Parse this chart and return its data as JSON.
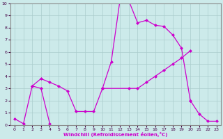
{
  "xlabel": "Windchill (Refroidissement éolien,°C)",
  "xlim": [
    -0.5,
    23.5
  ],
  "ylim": [
    0,
    10
  ],
  "xticks": [
    0,
    1,
    2,
    3,
    4,
    5,
    6,
    7,
    8,
    9,
    10,
    11,
    12,
    13,
    14,
    15,
    16,
    17,
    18,
    19,
    20,
    21,
    22,
    23
  ],
  "yticks": [
    0,
    1,
    2,
    3,
    4,
    5,
    6,
    7,
    8,
    9,
    10
  ],
  "bg_color": "#cceaea",
  "line_color": "#cc00cc",
  "grid_color": "#aacccc",
  "segments": [
    {
      "x": [
        0,
        1,
        2,
        3,
        4
      ],
      "y": [
        0.5,
        0.1,
        3.2,
        3.0,
        0.1
      ]
    },
    {
      "x": [
        2,
        3,
        4,
        5,
        6,
        7,
        8,
        9,
        10
      ],
      "y": [
        3.2,
        3.8,
        3.5,
        3.2,
        2.8,
        1.1,
        1.1,
        1.1,
        3.0
      ]
    },
    {
      "x": [
        10,
        11,
        12,
        13,
        14,
        15,
        16,
        17,
        18,
        19,
        20
      ],
      "y": [
        3.0,
        5.2,
        10.3,
        10.2,
        8.4,
        8.6,
        8.2,
        8.1,
        7.4,
        6.3,
        2.0
      ]
    },
    {
      "x": [
        10,
        13,
        14,
        15,
        16,
        17,
        18,
        19,
        20
      ],
      "y": [
        3.0,
        3.0,
        3.0,
        3.5,
        4.0,
        4.5,
        5.0,
        5.5,
        6.1
      ]
    },
    {
      "x": [
        20,
        21,
        22,
        23
      ],
      "y": [
        2.0,
        0.9,
        0.3,
        0.3
      ]
    }
  ]
}
